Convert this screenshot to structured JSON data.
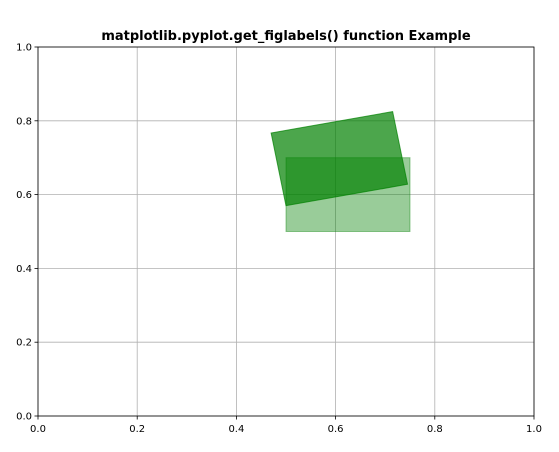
{
  "chart_data": {
    "type": "area",
    "title": "matplotlib.pyplot.get_figlabels() function Example",
    "xlabel": "",
    "ylabel": "",
    "xlim": [
      0.0,
      1.0
    ],
    "ylim": [
      0.0,
      1.0
    ],
    "grid": true,
    "xticks": [
      "0.0",
      "0.2",
      "0.4",
      "0.6",
      "0.8",
      "1.0"
    ],
    "yticks": [
      "0.0",
      "0.2",
      "0.4",
      "0.6",
      "0.8",
      "1.0"
    ],
    "xtick_values": [
      0.0,
      0.2,
      0.4,
      0.6,
      0.8,
      1.0
    ],
    "ytick_values": [
      0.0,
      0.2,
      0.4,
      0.6,
      0.8,
      1.0
    ],
    "shapes": [
      {
        "kind": "rectangle",
        "x": 0.5,
        "y": 0.5,
        "width": 0.25,
        "height": 0.2,
        "color": "#008000",
        "alpha": 0.4
      },
      {
        "kind": "rotated-rectangle",
        "points": [
          [
            0.5,
            0.57
          ],
          [
            0.745,
            0.628
          ],
          [
            0.715,
            0.825
          ],
          [
            0.47,
            0.767
          ]
        ],
        "color": "#008000",
        "alpha": 0.7
      }
    ]
  }
}
